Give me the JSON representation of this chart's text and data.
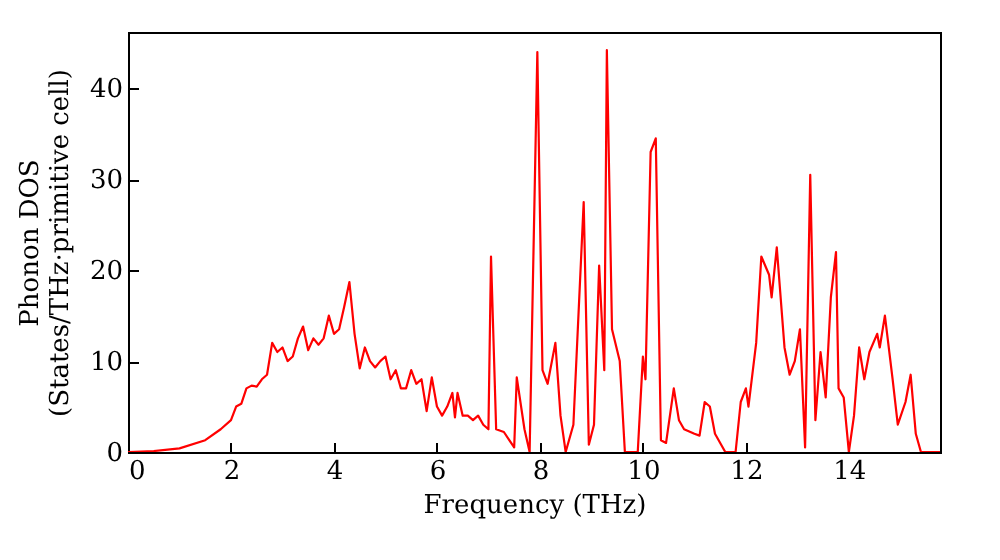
{
  "chart_data": {
    "type": "line",
    "xlabel": "Frequency (THz)",
    "ylabel": "Phonon DOS\n(States/THz·primitive cell)",
    "xlim": [
      0,
      15.77
    ],
    "ylim": [
      0,
      46.2
    ],
    "xticks": [
      0,
      2,
      4,
      6,
      8,
      10,
      12,
      14
    ],
    "yticks": [
      0,
      10,
      20,
      30,
      40
    ],
    "grid": false,
    "marker": "none",
    "line_style": "solid",
    "series": [
      {
        "color": "#ff0000",
        "x": [
          0,
          0.5,
          1.0,
          1.5,
          1.8,
          2.0,
          2.1,
          2.2,
          2.3,
          2.4,
          2.5,
          2.6,
          2.7,
          2.8,
          2.9,
          3.0,
          3.1,
          3.2,
          3.3,
          3.4,
          3.5,
          3.6,
          3.7,
          3.8,
          3.9,
          4.0,
          4.1,
          4.2,
          4.3,
          4.4,
          4.5,
          4.6,
          4.7,
          4.8,
          4.9,
          5.0,
          5.1,
          5.2,
          5.3,
          5.4,
          5.5,
          5.6,
          5.7,
          5.8,
          5.9,
          6.0,
          6.1,
          6.2,
          6.3,
          6.35,
          6.4,
          6.5,
          6.6,
          6.7,
          6.8,
          6.9,
          7.0,
          7.05,
          7.15,
          7.3,
          7.5,
          7.55,
          7.7,
          7.8,
          7.95,
          8.05,
          8.15,
          8.3,
          8.4,
          8.5,
          8.65,
          8.85,
          8.95,
          9.05,
          9.15,
          9.25,
          9.3,
          9.4,
          9.55,
          9.65,
          9.9,
          10.0,
          10.05,
          10.15,
          10.25,
          10.35,
          10.45,
          10.6,
          10.7,
          10.8,
          11.0,
          11.1,
          11.2,
          11.3,
          11.4,
          11.6,
          11.8,
          11.9,
          12.0,
          12.05,
          12.2,
          12.3,
          12.45,
          12.5,
          12.6,
          12.75,
          12.85,
          12.95,
          13.05,
          13.15,
          13.25,
          13.35,
          13.45,
          13.55,
          13.65,
          13.75,
          13.8,
          13.9,
          14.0,
          14.1,
          14.2,
          14.3,
          14.4,
          14.55,
          14.6,
          14.7,
          14.85,
          14.95,
          15.1,
          15.2,
          15.3,
          15.4,
          15.77
        ],
        "values": [
          0,
          0.1,
          0.4,
          1.3,
          2.5,
          3.5,
          5,
          5.3,
          7,
          7.3,
          7.2,
          8,
          8.5,
          12,
          11,
          11.5,
          10,
          10.5,
          12.5,
          13.8,
          11.2,
          12.5,
          11.8,
          12.5,
          15,
          13,
          13.5,
          16,
          18.7,
          13,
          9.2,
          11.5,
          10,
          9.3,
          10,
          10.5,
          8,
          9,
          7,
          7,
          9,
          7.5,
          8,
          4.5,
          8.2,
          5,
          4,
          5,
          6.5,
          3.8,
          6.5,
          4,
          4,
          3.5,
          4,
          3,
          2.5,
          21.5,
          2.5,
          2.2,
          0.5,
          8.2,
          2.5,
          0,
          44,
          9,
          7.5,
          12,
          4,
          0,
          3,
          27.5,
          0.8,
          3,
          20.5,
          9,
          44.2,
          13.5,
          10,
          0,
          0,
          10.5,
          8,
          33,
          34.5,
          1.3,
          1,
          7,
          3.5,
          2.5,
          2,
          1.8,
          5.5,
          5,
          2,
          0,
          0,
          5.5,
          7,
          5,
          12,
          21.5,
          19.5,
          17,
          22.5,
          11.5,
          8.5,
          10,
          13.5,
          0.5,
          30.5,
          3.5,
          11,
          6,
          17,
          22,
          7,
          6,
          0,
          4,
          11.5,
          8,
          11,
          13,
          11.5,
          15,
          8,
          3,
          5.5,
          8.5,
          2,
          0,
          0
        ]
      }
    ]
  }
}
